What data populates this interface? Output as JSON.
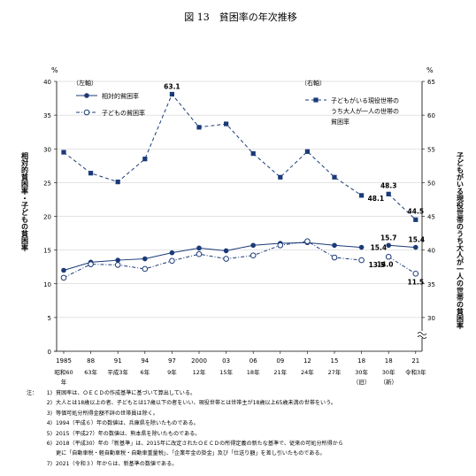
{
  "chart_data": {
    "type": "line",
    "title": "図 13　貧困率の年次推移",
    "left_axis": {
      "label": "相対的貧困率・子どもの貧困率",
      "unit": "%",
      "tag": "（左軸）",
      "ylim": [
        0,
        40
      ],
      "ticks": [
        "0",
        "5",
        "10",
        "15",
        "20",
        "25",
        "30",
        "35",
        "40"
      ]
    },
    "right_axis": {
      "label": "子どもがいる現役世帯のうち大人が一人の世帯の貧困率",
      "unit": "%",
      "tag": "（右軸）",
      "ylim": [
        25,
        65
      ],
      "axis_break": true,
      "ticks": [
        "30",
        "35",
        "40",
        "45",
        "50",
        "55",
        "60",
        "65"
      ]
    },
    "categories": [
      {
        "top": "1985",
        "bottom": "昭和60",
        "sub": "年"
      },
      {
        "top": "88",
        "bottom": "63年",
        "sub": ""
      },
      {
        "top": "91",
        "bottom": "平成3年",
        "sub": ""
      },
      {
        "top": "94",
        "bottom": "6年",
        "sub": ""
      },
      {
        "top": "97",
        "bottom": "9年",
        "sub": ""
      },
      {
        "top": "2000",
        "bottom": "12年",
        "sub": ""
      },
      {
        "top": "03",
        "bottom": "15年",
        "sub": ""
      },
      {
        "top": "06",
        "bottom": "18年",
        "sub": ""
      },
      {
        "top": "09",
        "bottom": "21年",
        "sub": ""
      },
      {
        "top": "12",
        "bottom": "24年",
        "sub": ""
      },
      {
        "top": "15",
        "bottom": "27年",
        "sub": ""
      },
      {
        "top": "18",
        "bottom": "30年",
        "sub": "（旧）"
      },
      {
        "top": "18",
        "bottom": "30年",
        "sub": "（新）"
      },
      {
        "top": "21",
        "bottom": "令和3年",
        "sub": ""
      }
    ],
    "series": [
      {
        "name": "相対的貧困率",
        "axis": "left",
        "style": "solid-filled-circle",
        "color": "#1b3a78",
        "values": [
          12.0,
          13.2,
          13.5,
          13.7,
          14.6,
          15.3,
          14.9,
          15.7,
          16.0,
          16.1,
          15.7,
          15.4,
          15.7,
          15.4
        ],
        "breaks_after": [
          11
        ],
        "labels": {
          "11": "15.4",
          "12": "15.7",
          "13": "15.4"
        }
      },
      {
        "name": "子どもの貧困率",
        "axis": "left",
        "style": "dashdot-open-circle",
        "color": "#1b3a78",
        "values": [
          10.9,
          12.9,
          12.8,
          12.2,
          13.4,
          14.4,
          13.7,
          14.2,
          15.7,
          16.3,
          13.9,
          13.5,
          14.0,
          11.5
        ],
        "breaks_after": [
          11
        ],
        "labels": {
          "11": "13.5",
          "12": "14.0",
          "13": "11.5"
        }
      },
      {
        "name": "子どもがいる現役世帯のうち大人が一人の世帯の貧困率",
        "legend_lines": [
          "子どもがいる現役世帯の",
          "うち大人が一人の世帯の",
          "貧困率"
        ],
        "axis": "right",
        "style": "dashed-filled-square",
        "color": "#1b3a78",
        "values": [
          54.5,
          51.4,
          50.1,
          53.5,
          63.1,
          58.2,
          58.7,
          54.3,
          50.8,
          54.6,
          50.8,
          48.1,
          48.3,
          44.5
        ],
        "breaks_after": [
          11
        ],
        "labels": {
          "4": "63.1",
          "11": "48.1",
          "12": "48.3",
          "13": "44.5"
        }
      }
    ]
  },
  "notes": {
    "head": "注：",
    "items": [
      {
        "num": "1)",
        "text": "貧困率は、ＯＥＣＤの作成基準に基づいて算出している。"
      },
      {
        "num": "2)",
        "text": "大人とは18歳以上の者、子どもとは17歳以下の者をいい、現役世帯とは世帯主が18歳以上65歳未満の世帯をいう。"
      },
      {
        "num": "3)",
        "text": "等価可処分所得金額不詳の世帯員は除く。"
      },
      {
        "num": "4)",
        "text": "1994（平成６）年の数値は、兵庫県を除いたものである。"
      },
      {
        "num": "5)",
        "text": "2015（平成27）年の数値は、熊本県を除いたものである。"
      },
      {
        "num": "6)",
        "text": "2018（平成30）年の「新基準」は、2015年に改定されたＯＥＣＤの所得定義の新たな基準で、従来の可処分所得から"
      },
      {
        "num": "",
        "text": "更に「自動車税・軽自動車税・自動車重量税」、「企業年金の掛金」及び「仕送り額」を差し引いたものである。"
      },
      {
        "num": "7)",
        "text": "2021（令和３）年からは、新基準の数値である。"
      }
    ]
  }
}
